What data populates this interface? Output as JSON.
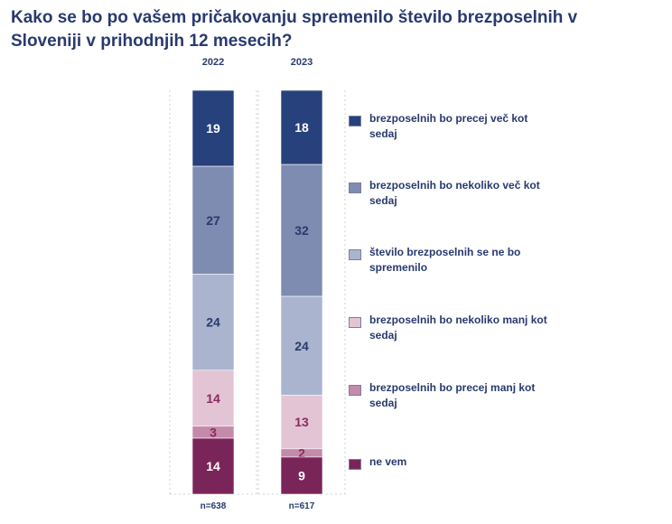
{
  "title": "Kako se bo po vašem pričakovanju spremenilo število brezposelnih v Sloveniji v prihodnjih 12 mesecih?",
  "colors": {
    "title": "#283a6e",
    "label_dark_bg": "#ffffff",
    "label_light_bg_blue": "#283a6e",
    "label_light_bg_purple": "#7a2a5a"
  },
  "chart_data": {
    "type": "bar",
    "stacked": true,
    "orientation": "vertical",
    "categories": [
      "2022",
      "2023"
    ],
    "sample_sizes": [
      "n=638",
      "n=617"
    ],
    "series": [
      {
        "name": "brezposelnih bo precej več kot sedaj",
        "color": "#27417c",
        "label_color": "#ffffff",
        "values": [
          19,
          18
        ]
      },
      {
        "name": "brezposelnih bo nekoliko več kot sedaj",
        "color": "#7e8cb1",
        "label_color": "#283a6e",
        "values": [
          27,
          32
        ]
      },
      {
        "name": "število brezposelnih se ne bo spremenilo",
        "color": "#aab4cf",
        "label_color": "#283a6e",
        "values": [
          24,
          24
        ]
      },
      {
        "name": "brezposelnih bo nekoliko manj kot sedaj",
        "color": "#e3c4d5",
        "label_color": "#8a2a60",
        "values": [
          14,
          13
        ]
      },
      {
        "name": "brezposelnih bo precej manj kot sedaj",
        "color": "#c48aaa",
        "label_color": "#8a2a60",
        "values": [
          3,
          2
        ]
      },
      {
        "name": "ne vem",
        "color": "#7a2559",
        "label_color": "#ffffff",
        "values": [
          14,
          9
        ]
      }
    ],
    "legend_position": "right",
    "grid": false
  }
}
